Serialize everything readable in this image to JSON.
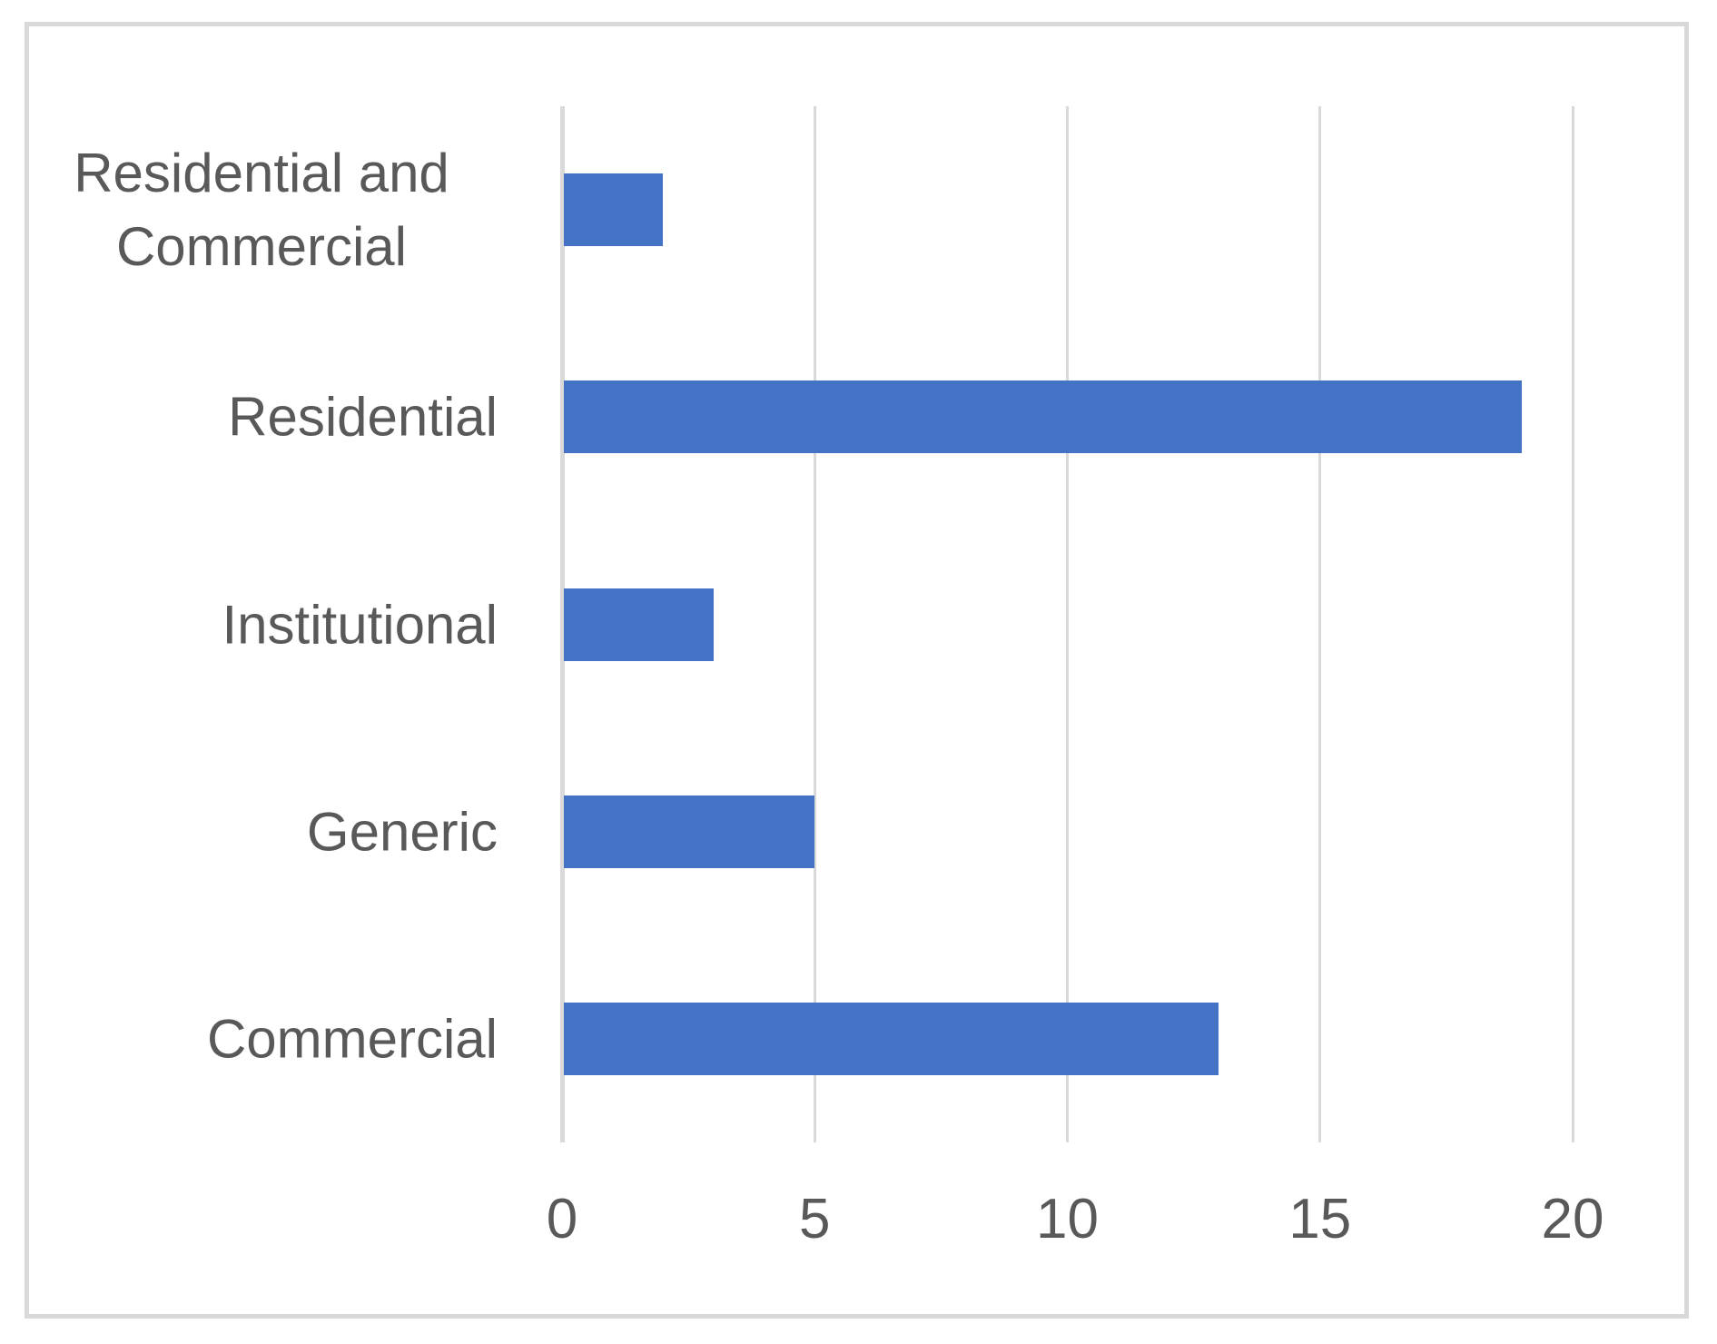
{
  "chart_data": {
    "type": "bar",
    "orientation": "horizontal",
    "title": "",
    "xlabel": "",
    "ylabel": "",
    "categories": [
      "Residential and Commercial",
      "Residential",
      "Institutional",
      "Generic",
      "Commercial"
    ],
    "values": [
      2,
      19,
      3,
      5,
      13
    ],
    "xlim": [
      0,
      20
    ],
    "xticks": [
      0,
      5,
      10,
      15,
      20
    ],
    "grid": "vertical-gridlines-on",
    "legend": "none"
  },
  "style": {
    "bar_color": "#4472C4",
    "gridline_color": "#D9D9D9",
    "axis_line_color": "#D9D9D9",
    "frame_border_color": "#D9D9D9",
    "text_color": "#595959",
    "background_color": "#FFFFFF"
  }
}
